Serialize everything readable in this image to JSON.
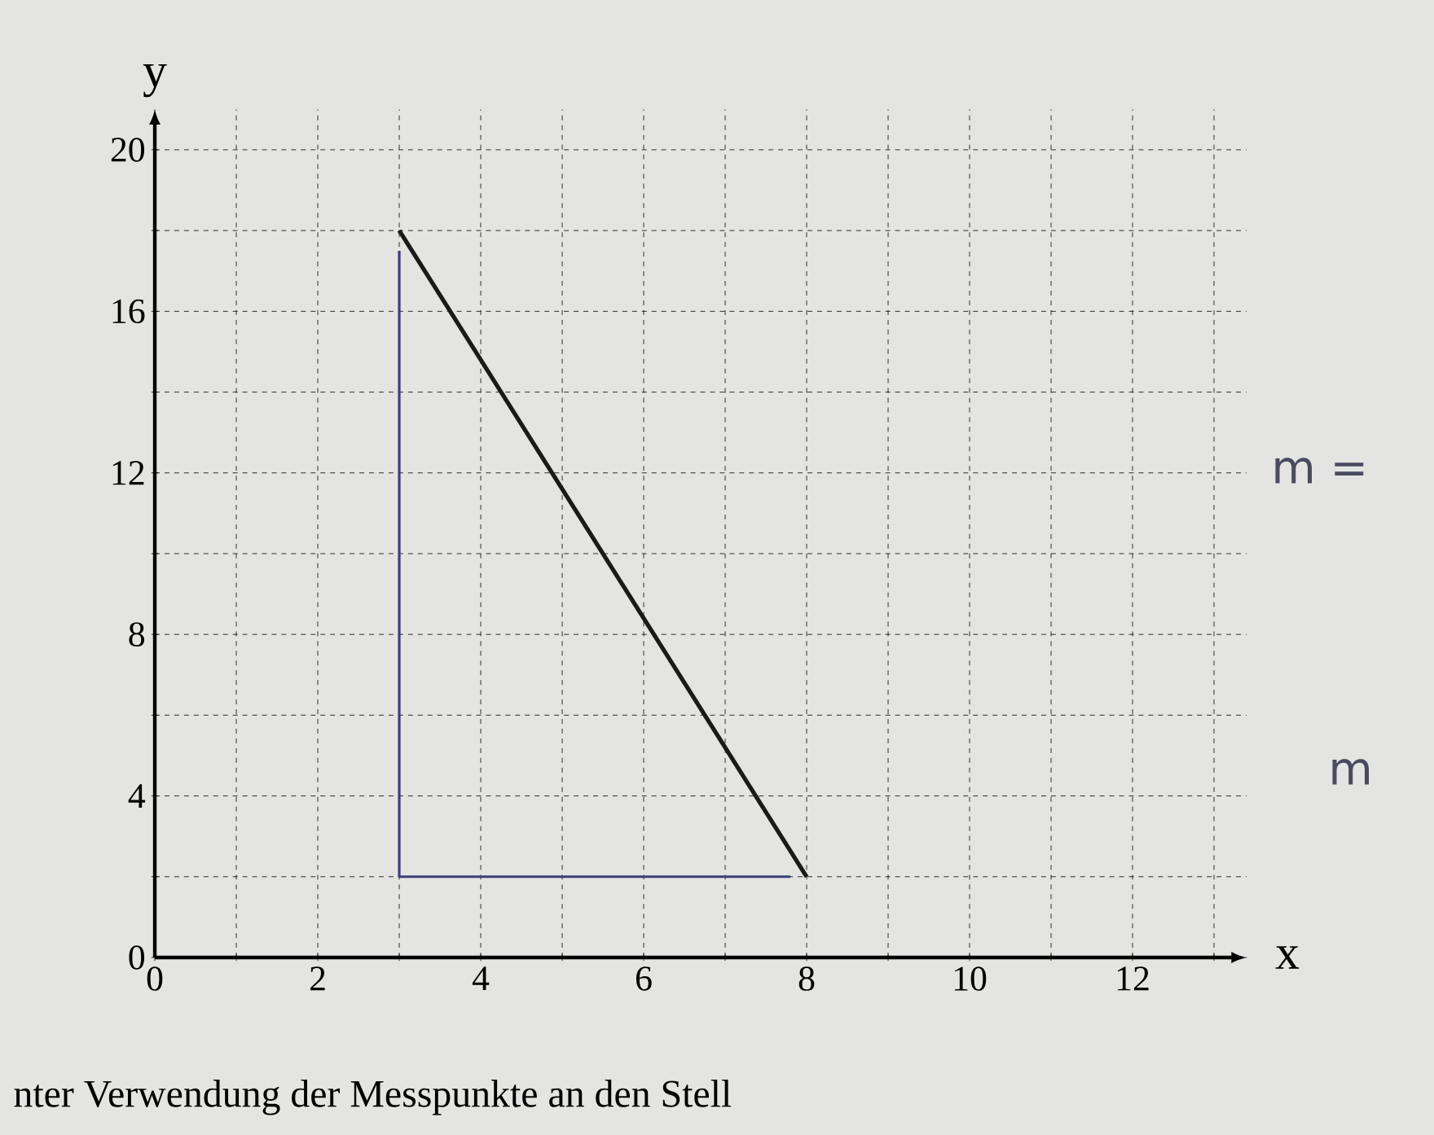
{
  "chart_data": {
    "type": "line",
    "xlabel": "x",
    "ylabel": "y",
    "xlim": [
      0,
      13.4
    ],
    "ylim": [
      0,
      21
    ],
    "xticks": [
      0,
      {
        "value": 1,
        "label": null
      },
      2,
      {
        "value": 3,
        "label": null
      },
      4,
      {
        "value": 5,
        "label": null
      },
      6,
      {
        "value": 7,
        "label": null
      },
      8,
      {
        "value": 9,
        "label": null
      },
      10,
      {
        "value": 11,
        "label": null
      },
      12,
      {
        "value": 13,
        "label": null
      }
    ],
    "yticks": [
      0,
      {
        "value": 2,
        "label": null
      },
      4,
      {
        "value": 6,
        "label": null
      },
      8,
      {
        "value": 10,
        "label": null
      },
      12,
      {
        "value": 14,
        "label": null
      },
      16,
      {
        "value": 18,
        "label": null
      },
      20
    ],
    "grid": true,
    "marker": "none",
    "line_style": "solid",
    "series": [
      {
        "color": "#1a1a1a",
        "x": [
          3,
          8
        ],
        "values": [
          18,
          2
        ]
      },
      {
        "color": "#3b3f78",
        "x": [
          3,
          3,
          7.8
        ],
        "values": [
          17.5,
          2,
          2
        ]
      }
    ],
    "annotations": [
      "m =",
      "m",
      "nter Verwendung der Messpunkte an den Stell"
    ]
  }
}
